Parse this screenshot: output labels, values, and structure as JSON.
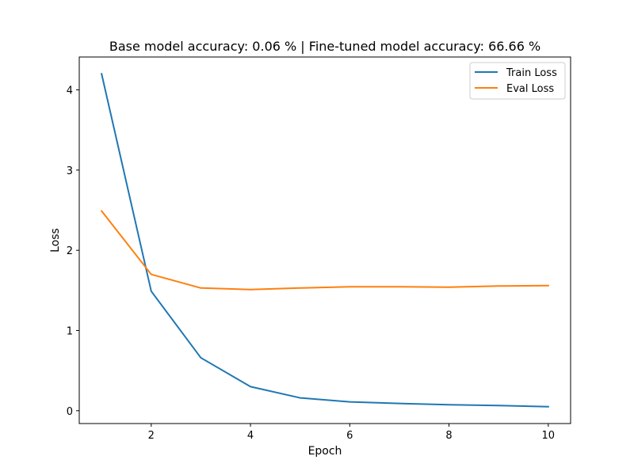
{
  "chart_data": {
    "type": "line",
    "title": "Base model accuracy: 0.06 % | Fine-tuned model accuracy: 66.66 %",
    "xlabel": "Epoch",
    "ylabel": "Loss",
    "xlim": [
      0.55,
      10.45
    ],
    "ylim": [
      -0.16,
      4.41
    ],
    "xticks": [
      2,
      4,
      6,
      8,
      10
    ],
    "xtick_labels": [
      "2",
      "4",
      "6",
      "8",
      "10"
    ],
    "yticks": [
      0,
      1,
      2,
      3,
      4
    ],
    "ytick_labels": [
      "0",
      "1",
      "2",
      "3",
      "4"
    ],
    "grid": false,
    "legend_position": "top-right",
    "x": [
      1,
      2,
      3,
      4,
      5,
      6,
      7,
      8,
      9,
      10
    ],
    "series": [
      {
        "name": "Train Loss",
        "color": "#1f77b4",
        "values": [
          4.2,
          1.49,
          0.66,
          0.3,
          0.16,
          0.11,
          0.09,
          0.075,
          0.065,
          0.05
        ]
      },
      {
        "name": "Eval Loss",
        "color": "#ff7f0e",
        "values": [
          2.49,
          1.7,
          1.53,
          1.51,
          1.53,
          1.545,
          1.545,
          1.54,
          1.555,
          1.56
        ]
      }
    ]
  }
}
